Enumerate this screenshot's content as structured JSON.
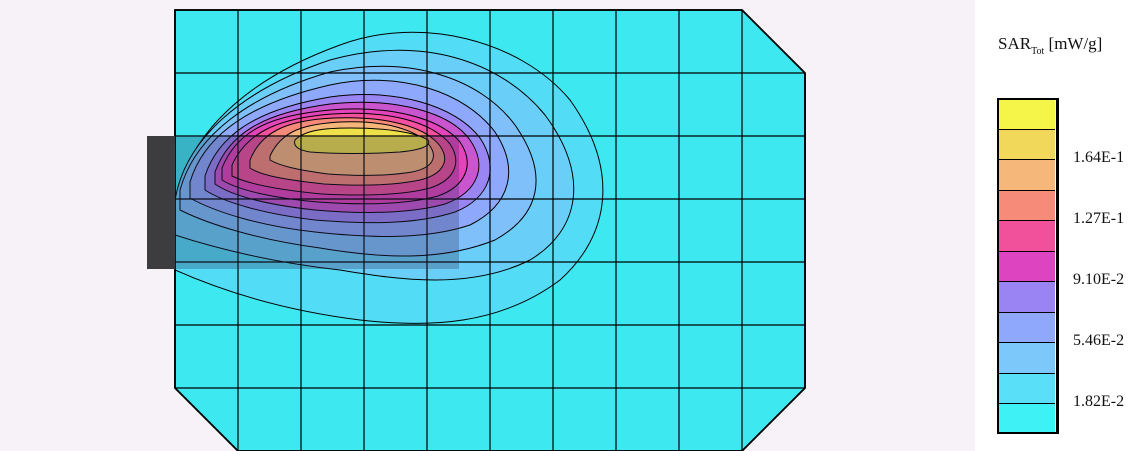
{
  "chart_data": {
    "type": "heatmap",
    "title": "",
    "colorbar": {
      "title_main": "SAR",
      "title_sub": "Tot",
      "title_unit": "[mW/g]",
      "levels": [
        {
          "color": "#3ef1f4"
        },
        {
          "color": "#59dff7"
        },
        {
          "color": "#7cc8fb"
        },
        {
          "color": "#8fa8fb"
        },
        {
          "color": "#9a83f3"
        },
        {
          "color": "#dc44c0"
        },
        {
          "color": "#f1509a"
        },
        {
          "color": "#f58b78"
        },
        {
          "color": "#f6b77a"
        },
        {
          "color": "#f2d85a"
        },
        {
          "color": "#f4f548"
        }
      ],
      "tick_labels": [
        "1.82E-2",
        "5.46E-2",
        "9.10E-2",
        "1.27E-1",
        "1.64E-1"
      ]
    },
    "colors": {
      "background_fill": "#3ee8f0",
      "device_block": "#3d3d40",
      "device_overlay": "#2a2a55"
    }
  }
}
